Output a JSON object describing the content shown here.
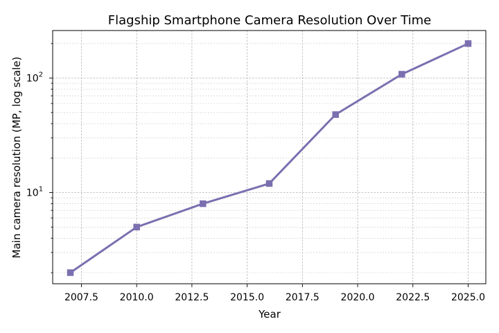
{
  "chart_data": {
    "type": "line",
    "title": "Flagship Smartphone Camera Resolution Over Time",
    "xlabel": "Year",
    "ylabel": "Main camera resolution (MP, log scale)",
    "yscale": "log",
    "grid": true,
    "xlim": [
      2006.2,
      2025.8
    ],
    "ylim": [
      1.6,
      260
    ],
    "x_ticks": [
      "2007.5",
      "2010.0",
      "2012.5",
      "2015.0",
      "2017.5",
      "2020.0",
      "2022.5",
      "2025.0"
    ],
    "x_tick_values": [
      2007.5,
      2010.0,
      2012.5,
      2015.0,
      2017.5,
      2020.0,
      2022.5,
      2025.0
    ],
    "y_major_ticks": [
      {
        "value": 10,
        "base": "10",
        "exp": "1"
      },
      {
        "value": 100,
        "base": "10",
        "exp": "2"
      }
    ],
    "series": [
      {
        "color": "#7b6fb0",
        "marker": "square",
        "x": [
          2007,
          2010,
          2013,
          2016,
          2019,
          2022,
          2025
        ],
        "y": [
          2,
          5,
          8,
          12,
          48,
          108,
          200
        ]
      }
    ]
  }
}
